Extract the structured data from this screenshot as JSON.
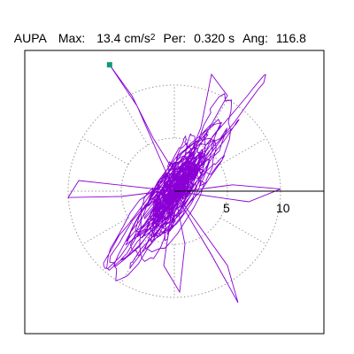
{
  "header": {
    "station": "AUPA",
    "max_label": "Max:",
    "max_value": "13.4 cm/s",
    "max_exponent": "2",
    "per_label": "Per:",
    "per_value": "0.320 s",
    "ang_label": "Ang:",
    "ang_value": "116.8"
  },
  "chart_data": {
    "type": "polar-particle-motion",
    "rings": [
      5,
      10
    ],
    "ring_labels": [
      "5",
      "10"
    ],
    "spoke_angles_deg": [
      0,
      30,
      60,
      90,
      120,
      150,
      180,
      210,
      240,
      270,
      300,
      330
    ],
    "r_max": 10,
    "max_amplitude": 13.4,
    "max_point": {
      "x": -6.1,
      "y": 11.9
    },
    "angle_deg": 116.8,
    "grid": true,
    "colors": {
      "trace": "#8a00d4",
      "grid": "#9a9a9a",
      "max_marker": "#0a9a7a",
      "frame": "#000000"
    }
  }
}
